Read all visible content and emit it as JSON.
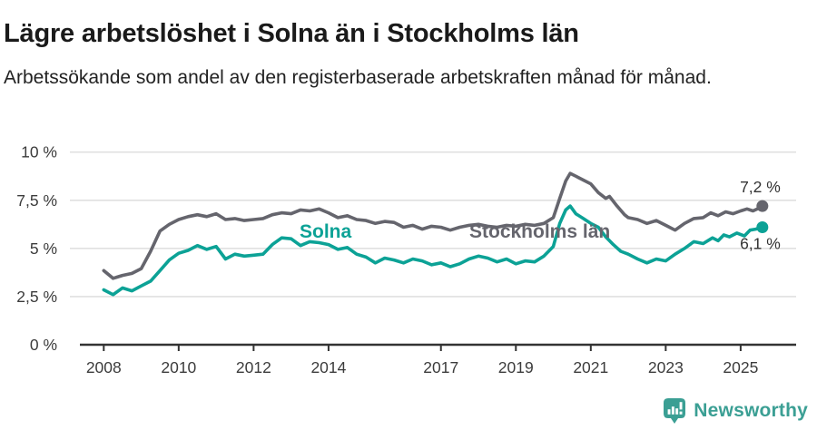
{
  "header": {
    "title": "Lägre arbetslöshet i Solna än i Stockholms län",
    "subtitle": "Arbetssökande som andel av den registerbaserade arbetskraften månad för månad."
  },
  "footer": {
    "brand": "Newsworthy",
    "logo_icon": "bar-chart-speech-bubble"
  },
  "colors": {
    "solna_line": "#0ca296",
    "stockholm_line": "#65656d",
    "grid": "#e0e0e0",
    "axis": "#333333",
    "tick_text": "#3c3c3c",
    "annotation_text": "#333333",
    "title_text": "#1a1a1a",
    "brand_teal": "#3b9f94"
  },
  "chart_data": {
    "type": "line",
    "title": "Lägre arbetslöshet i Solna än i Stockholms län",
    "subtitle": "Arbetssökande som andel av den registerbaserade arbetskraften månad för månad.",
    "unit": "%",
    "grid": true,
    "legend_position": "inline-labels",
    "xlim": [
      2007.4,
      2026.4
    ],
    "ylim": [
      0,
      10
    ],
    "x_ticks": [
      "2008",
      "2010",
      "2012",
      "2014",
      "2017",
      "2019",
      "2021",
      "2023",
      "2025"
    ],
    "y_ticks": [
      {
        "value": 0,
        "label": "0 %"
      },
      {
        "value": 2.5,
        "label": "2,5 %"
      },
      {
        "value": 5,
        "label": "5 %"
      },
      {
        "value": 7.5,
        "label": "7,5 %"
      },
      {
        "value": 10,
        "label": "10 %"
      }
    ],
    "series": [
      {
        "name": "Stockholms län",
        "color": "#65656d",
        "end_label": "7,2 %",
        "end_value": 7.2,
        "points": [
          [
            2008.0,
            3.85
          ],
          [
            2008.25,
            3.45
          ],
          [
            2008.5,
            3.6
          ],
          [
            2008.75,
            3.7
          ],
          [
            2009.0,
            3.95
          ],
          [
            2009.25,
            4.85
          ],
          [
            2009.5,
            5.9
          ],
          [
            2009.75,
            6.25
          ],
          [
            2010.0,
            6.5
          ],
          [
            2010.25,
            6.65
          ],
          [
            2010.5,
            6.75
          ],
          [
            2010.75,
            6.65
          ],
          [
            2011.0,
            6.8
          ],
          [
            2011.25,
            6.5
          ],
          [
            2011.5,
            6.55
          ],
          [
            2011.75,
            6.45
          ],
          [
            2012.0,
            6.5
          ],
          [
            2012.25,
            6.55
          ],
          [
            2012.5,
            6.75
          ],
          [
            2012.75,
            6.85
          ],
          [
            2013.0,
            6.8
          ],
          [
            2013.25,
            7.0
          ],
          [
            2013.5,
            6.95
          ],
          [
            2013.75,
            7.05
          ],
          [
            2014.0,
            6.85
          ],
          [
            2014.25,
            6.6
          ],
          [
            2014.5,
            6.7
          ],
          [
            2014.75,
            6.5
          ],
          [
            2015.0,
            6.45
          ],
          [
            2015.25,
            6.3
          ],
          [
            2015.5,
            6.4
          ],
          [
            2015.75,
            6.35
          ],
          [
            2016.0,
            6.1
          ],
          [
            2016.25,
            6.2
          ],
          [
            2016.5,
            6.0
          ],
          [
            2016.75,
            6.15
          ],
          [
            2017.0,
            6.1
          ],
          [
            2017.25,
            5.95
          ],
          [
            2017.5,
            6.1
          ],
          [
            2017.75,
            6.2
          ],
          [
            2018.0,
            6.25
          ],
          [
            2018.25,
            6.15
          ],
          [
            2018.5,
            6.1
          ],
          [
            2018.75,
            6.2
          ],
          [
            2019.0,
            6.15
          ],
          [
            2019.25,
            6.25
          ],
          [
            2019.5,
            6.2
          ],
          [
            2019.75,
            6.3
          ],
          [
            2020.0,
            6.6
          ],
          [
            2020.17,
            7.6
          ],
          [
            2020.33,
            8.5
          ],
          [
            2020.45,
            8.9
          ],
          [
            2020.6,
            8.75
          ],
          [
            2020.8,
            8.55
          ],
          [
            2021.0,
            8.35
          ],
          [
            2021.2,
            7.9
          ],
          [
            2021.4,
            7.6
          ],
          [
            2021.5,
            7.7
          ],
          [
            2021.7,
            7.2
          ],
          [
            2021.9,
            6.75
          ],
          [
            2022.0,
            6.6
          ],
          [
            2022.25,
            6.5
          ],
          [
            2022.5,
            6.3
          ],
          [
            2022.75,
            6.45
          ],
          [
            2023.0,
            6.2
          ],
          [
            2023.25,
            5.95
          ],
          [
            2023.5,
            6.3
          ],
          [
            2023.75,
            6.55
          ],
          [
            2024.0,
            6.6
          ],
          [
            2024.2,
            6.85
          ],
          [
            2024.4,
            6.7
          ],
          [
            2024.6,
            6.9
          ],
          [
            2024.8,
            6.8
          ],
          [
            2025.0,
            6.95
          ],
          [
            2025.17,
            7.05
          ],
          [
            2025.33,
            6.95
          ],
          [
            2025.5,
            7.1
          ],
          [
            2025.58,
            7.2
          ]
        ]
      },
      {
        "name": "Solna",
        "color": "#0ca296",
        "end_label": "6,1 %",
        "end_value": 6.1,
        "points": [
          [
            2008.0,
            2.85
          ],
          [
            2008.25,
            2.6
          ],
          [
            2008.5,
            2.95
          ],
          [
            2008.75,
            2.8
          ],
          [
            2009.0,
            3.05
          ],
          [
            2009.25,
            3.3
          ],
          [
            2009.5,
            3.85
          ],
          [
            2009.75,
            4.4
          ],
          [
            2010.0,
            4.75
          ],
          [
            2010.25,
            4.9
          ],
          [
            2010.5,
            5.15
          ],
          [
            2010.75,
            4.95
          ],
          [
            2011.0,
            5.1
          ],
          [
            2011.25,
            4.45
          ],
          [
            2011.5,
            4.7
          ],
          [
            2011.75,
            4.6
          ],
          [
            2012.0,
            4.65
          ],
          [
            2012.25,
            4.7
          ],
          [
            2012.5,
            5.2
          ],
          [
            2012.75,
            5.55
          ],
          [
            2013.0,
            5.5
          ],
          [
            2013.25,
            5.15
          ],
          [
            2013.5,
            5.35
          ],
          [
            2013.75,
            5.3
          ],
          [
            2014.0,
            5.2
          ],
          [
            2014.25,
            4.95
          ],
          [
            2014.5,
            5.05
          ],
          [
            2014.75,
            4.7
          ],
          [
            2015.0,
            4.55
          ],
          [
            2015.25,
            4.25
          ],
          [
            2015.5,
            4.5
          ],
          [
            2015.75,
            4.4
          ],
          [
            2016.0,
            4.25
          ],
          [
            2016.25,
            4.45
          ],
          [
            2016.5,
            4.35
          ],
          [
            2016.75,
            4.15
          ],
          [
            2017.0,
            4.25
          ],
          [
            2017.25,
            4.05
          ],
          [
            2017.5,
            4.2
          ],
          [
            2017.75,
            4.45
          ],
          [
            2018.0,
            4.6
          ],
          [
            2018.25,
            4.5
          ],
          [
            2018.5,
            4.3
          ],
          [
            2018.75,
            4.45
          ],
          [
            2019.0,
            4.2
          ],
          [
            2019.25,
            4.35
          ],
          [
            2019.5,
            4.3
          ],
          [
            2019.75,
            4.6
          ],
          [
            2020.0,
            5.1
          ],
          [
            2020.17,
            6.3
          ],
          [
            2020.33,
            7.0
          ],
          [
            2020.45,
            7.2
          ],
          [
            2020.6,
            6.8
          ],
          [
            2020.8,
            6.55
          ],
          [
            2021.0,
            6.3
          ],
          [
            2021.2,
            6.1
          ],
          [
            2021.4,
            5.6
          ],
          [
            2021.6,
            5.2
          ],
          [
            2021.8,
            4.85
          ],
          [
            2022.0,
            4.7
          ],
          [
            2022.25,
            4.45
          ],
          [
            2022.5,
            4.25
          ],
          [
            2022.75,
            4.45
          ],
          [
            2023.0,
            4.35
          ],
          [
            2023.25,
            4.7
          ],
          [
            2023.5,
            5.0
          ],
          [
            2023.75,
            5.35
          ],
          [
            2024.0,
            5.25
          ],
          [
            2024.25,
            5.55
          ],
          [
            2024.4,
            5.4
          ],
          [
            2024.55,
            5.7
          ],
          [
            2024.7,
            5.6
          ],
          [
            2024.9,
            5.8
          ],
          [
            2025.1,
            5.65
          ],
          [
            2025.25,
            5.95
          ],
          [
            2025.4,
            6.0
          ],
          [
            2025.58,
            6.1
          ]
        ]
      }
    ]
  }
}
